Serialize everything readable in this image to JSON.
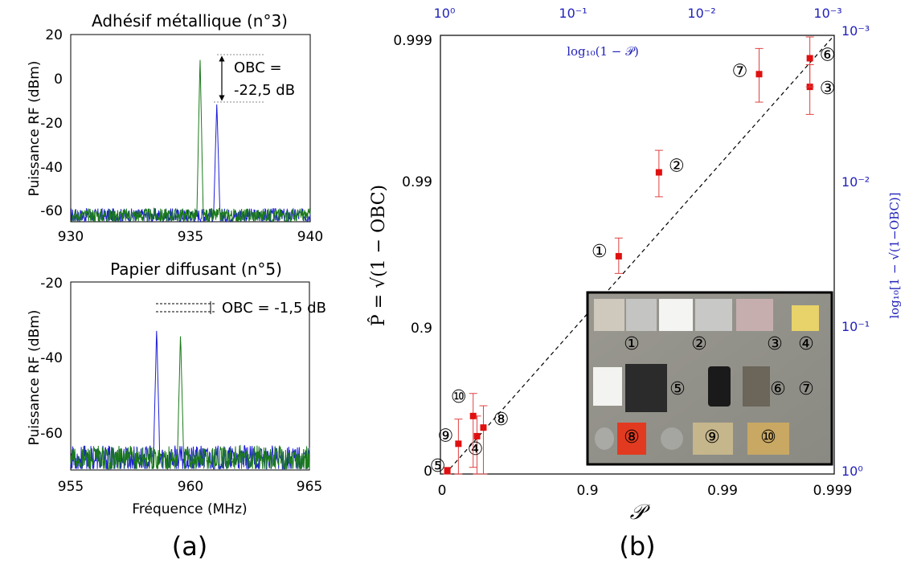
{
  "colors": {
    "blue_series": "#1f1fd8",
    "green_series": "#1a7a1a",
    "fit_points": "#e01010",
    "errorbars": "#e04040",
    "right_axis": "#2222bb",
    "photo_frame": "#000000"
  },
  "panel_a": {
    "label": "(a)",
    "ylabel": "Puissance RF (dBm)",
    "xlabel": "Fréquence (MHz)",
    "top": {
      "title": "Adhésif métallique (n°3)",
      "xlim": [
        930,
        940
      ],
      "ylim": [
        -70,
        20
      ],
      "xticks": [
        "930",
        "935",
        "940"
      ],
      "yticks": [
        "20",
        "0",
        "-20",
        "-40",
        "-60"
      ],
      "annotation": [
        "OBC =",
        "-22,5 dB"
      ],
      "peaks": [
        {
          "series": "green",
          "freq": 935.4,
          "level": 10
        },
        {
          "series": "blue",
          "freq": 936.1,
          "level": -12
        }
      ],
      "noise_floor": -67
    },
    "bottom": {
      "title": "Papier diffusant (n°5)",
      "xlim": [
        955,
        965
      ],
      "ylim": [
        -70,
        -20
      ],
      "xticks": [
        "955",
        "960",
        "965"
      ],
      "yticks": [
        "-20",
        "-40",
        "-60"
      ],
      "annotation": "OBC = -1,5 dB",
      "peaks": [
        {
          "series": "blue",
          "freq": 958.6,
          "level": -32
        },
        {
          "series": "green",
          "freq": 959.6,
          "level": -33.5
        }
      ],
      "noise_floor": -67
    }
  },
  "chart_data": {
    "type": "scatter",
    "label": "(b)",
    "xlabel": "𝒫",
    "ylabel": "P̂ = √(1 − OBC)",
    "xticks": [
      "0",
      "0.9",
      "0.99",
      "0.999"
    ],
    "yticks": [
      "0.999",
      "0.99",
      "0.9",
      "0"
    ],
    "top_axis_label": "log₁₀(1 − 𝒫)",
    "top_ticks": [
      "10⁰",
      "10⁻¹",
      "10⁻²",
      "10⁻³"
    ],
    "right_axis_label": "log₁₀[1 − √(1−OBC)]",
    "right_ticks": [
      "10⁻³",
      "10⁻²",
      "10⁻¹",
      "10⁰"
    ],
    "scale": "log10(1 - value), reversed",
    "xlim": [
      0,
      0.999
    ],
    "ylim": [
      0,
      0.999
    ],
    "points": [
      {
        "id": "1",
        "label": "①",
        "x": 0.955,
        "y": 0.968,
        "err": [
          0.958,
          0.976
        ]
      },
      {
        "id": "2",
        "label": "②",
        "x": 0.978,
        "y": 0.9915,
        "err": [
          0.9875,
          0.994
        ]
      },
      {
        "id": "3",
        "label": "③",
        "x": 0.9985,
        "y": 0.9978,
        "err": [
          0.9966,
          0.99845
        ]
      },
      {
        "id": "4",
        "label": "④",
        "x": 0.44,
        "y": 0.45,
        "err": [
          0.0,
          0.6
        ]
      },
      {
        "id": "5",
        "label": "⑤",
        "x": 0.05,
        "y": 0.05,
        "err": [
          0.0,
          0.1
        ]
      },
      {
        "id": "6",
        "label": "⑥",
        "x": 0.9985,
        "y": 0.9986,
        "err": [
          0.9978,
          0.99905
        ]
      },
      {
        "id": "7",
        "label": "⑦",
        "x": 0.9963,
        "y": 0.9982,
        "err": [
          0.9972,
          0.9988
        ]
      },
      {
        "id": "8",
        "label": "⑧",
        "x": 0.5,
        "y": 0.52,
        "err": [
          0.0,
          0.66
        ]
      },
      {
        "id": "9",
        "label": "⑨",
        "x": 0.22,
        "y": 0.38,
        "err": [
          0.0,
          0.58
        ]
      },
      {
        "id": "10",
        "label": "⑩",
        "x": 0.4,
        "y": 0.6,
        "err": [
          0.1,
          0.72
        ]
      }
    ],
    "diagonal": "y = x",
    "inset_labels": [
      "①",
      "②",
      "③",
      "④",
      "⑤",
      "⑥",
      "⑦",
      "⑧",
      "⑨",
      "⑩"
    ]
  }
}
